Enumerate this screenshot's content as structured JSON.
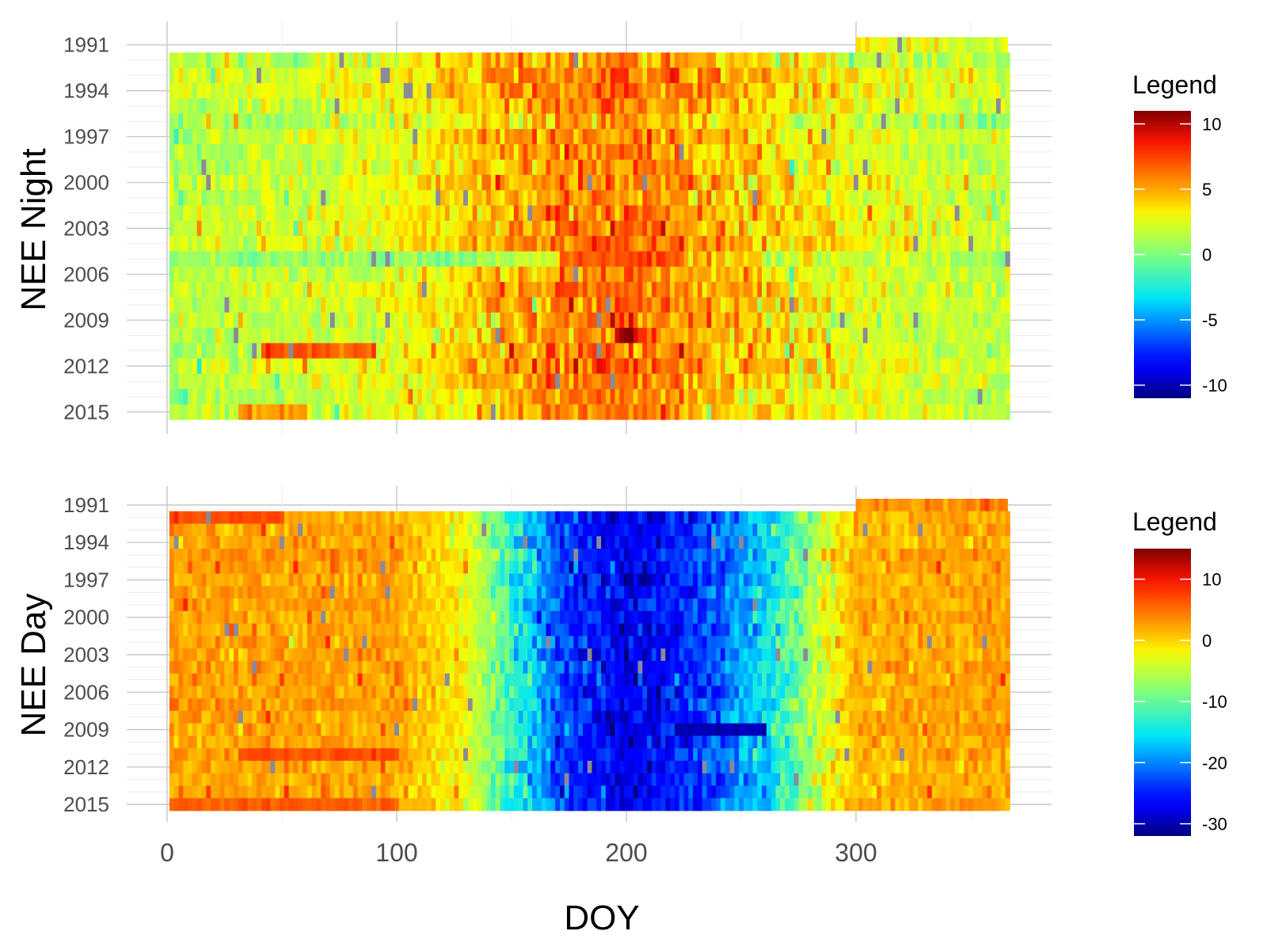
{
  "chart_data": [
    {
      "type": "heatmap",
      "ylabel": "NEE Night",
      "y_tick_labels": [
        "1991",
        "1994",
        "1997",
        "2000",
        "2003",
        "2006",
        "2009",
        "2012",
        "2015"
      ],
      "y_years": [
        1991,
        2015
      ],
      "year_1991_doy_range": [
        300,
        366
      ],
      "legend": {
        "title": "Legend",
        "placement": "right",
        "range": [
          -11,
          11
        ],
        "ticks": [
          10,
          5,
          0,
          -5,
          -10
        ],
        "tick_labels": [
          "10",
          "5",
          "0",
          "-5",
          "-10"
        ]
      },
      "seasonal_profile": {
        "doy": [
          0,
          60,
          110,
          150,
          180,
          200,
          220,
          260,
          290,
          330,
          366
        ],
        "value": [
          1.5,
          2,
          3,
          5,
          6,
          6.5,
          5.5,
          4,
          3,
          2,
          1.5
        ]
      },
      "notable_cells": [
        {
          "year": 2005,
          "doy_range": [
            0,
            150
          ],
          "value": 0.5
        },
        {
          "year": 2005,
          "doy_range": [
            150,
            170
          ],
          "value": 2.5
        },
        {
          "year": 2005,
          "doy_range": [
            170,
            225
          ],
          "value": 7
        },
        {
          "year": 2010,
          "doy_range": [
            195,
            205
          ],
          "value": 10.5
        },
        {
          "year": 2011,
          "doy_range": [
            40,
            90
          ],
          "value": 7
        },
        {
          "year": 2015,
          "doy_range": [
            30,
            60
          ],
          "value": 5.5
        }
      ]
    },
    {
      "type": "heatmap",
      "ylabel": "NEE Day",
      "xlabel": "DOY",
      "y_tick_labels": [
        "1991",
        "1994",
        "1997",
        "2000",
        "2003",
        "2006",
        "2009",
        "2012",
        "2015"
      ],
      "x_tick_labels": [
        "0",
        "100",
        "200",
        "300"
      ],
      "x_ticks": [
        0,
        100,
        200,
        300
      ],
      "xlim": [
        0,
        385
      ],
      "y_years": [
        1991,
        2015
      ],
      "year_1991_doy_range": [
        300,
        366
      ],
      "legend": {
        "title": "Legend",
        "placement": "right",
        "range": [
          -32,
          15
        ],
        "ticks": [
          10,
          0,
          -10,
          -20,
          -30
        ],
        "tick_labels": [
          "10",
          "0",
          "-10",
          "-20",
          "-30"
        ]
      },
      "seasonal_profile": {
        "doy": [
          0,
          100,
          130,
          150,
          170,
          200,
          230,
          260,
          280,
          300,
          366
        ],
        "value": [
          3,
          2.5,
          -2,
          -12,
          -22,
          -27,
          -24,
          -16,
          -6,
          2,
          3
        ]
      },
      "notable_cells": [
        {
          "year": 1992,
          "doy_range": [
            0,
            50
          ],
          "value": 7
        },
        {
          "year": 2011,
          "doy_range": [
            30,
            100
          ],
          "value": 7
        },
        {
          "year": 2015,
          "doy_range": [
            0,
            100
          ],
          "value": 6
        },
        {
          "year": 2009,
          "doy_range": [
            220,
            260
          ],
          "value": -30
        }
      ]
    }
  ]
}
